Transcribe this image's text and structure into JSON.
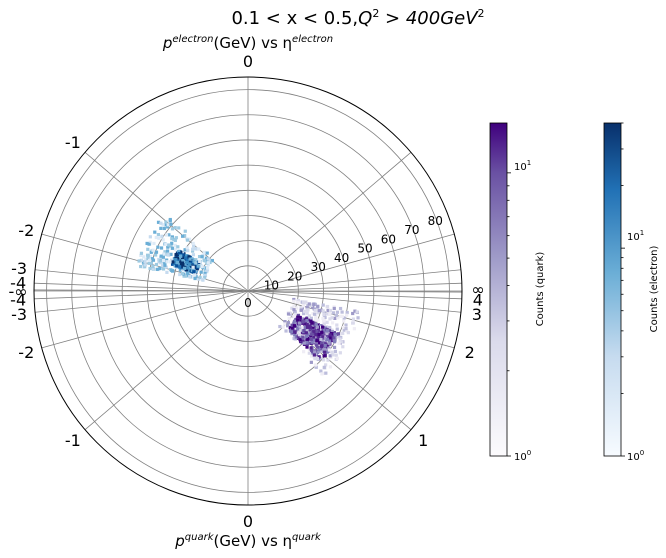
{
  "chart_data": {
    "type": "polar-histogram",
    "title": "0.1 < x < 0.5,$Q^2 > 400GeV^2$",
    "title_parts": {
      "plain": "0.1 < x < 0.5,",
      "q": "Q",
      "sq1": "2",
      "gt": " > 400GeV",
      "sq2": "2"
    },
    "electron_label": {
      "p": "p",
      "sup_p": "electron",
      "mid": "(GeV) vs η",
      "sup_eta": "electron"
    },
    "quark_label": {
      "p": "p",
      "sup_p": "quark",
      "mid": "(GeV) vs η",
      "sup_eta": "quark"
    },
    "radial_axis": {
      "range": [
        0,
        85
      ],
      "ticks": [
        0,
        10,
        20,
        30,
        40,
        50,
        60,
        70,
        80
      ],
      "grid": true
    },
    "eta_ticks": {
      "top_center": "0",
      "bottom_center": "0",
      "left": [
        "-1",
        "-2",
        "-3",
        "-4",
        "-∞",
        "-4",
        "-3",
        "-2",
        "-1"
      ],
      "right": [
        "∞",
        "4",
        "3",
        "2",
        "1"
      ]
    },
    "eta_tick_values": {
      "left": [
        -1,
        -2,
        -3,
        -4,
        null,
        -4,
        -3,
        -2,
        -1
      ],
      "right_electron": [
        null
      ],
      "right_quark": [
        4,
        3,
        2,
        1
      ]
    },
    "electron_hist": {
      "cmap": "Blues",
      "eta_range": [
        -2.2,
        -0.9
      ],
      "p_range": [
        18,
        45
      ],
      "dense_eta": [
        -1.8,
        -1.3
      ],
      "dense_p": [
        22,
        32
      ],
      "counts_range": [
        1,
        40
      ]
    },
    "quark_hist": {
      "cmap": "Purples",
      "eta_range": [
        0.8,
        2.4
      ],
      "p_range": [
        18,
        45
      ],
      "dense_eta": [
        0.9,
        1.5
      ],
      "dense_p": [
        22,
        40
      ],
      "counts_range": [
        1,
        15
      ]
    },
    "colorbar_quark": {
      "label": "Counts (quark)",
      "scale": "log",
      "range": [
        1,
        15
      ],
      "tick_labels": {
        "bottom": "10",
        "bottom_exp": "0",
        "top": "10",
        "top_exp": "1"
      }
    },
    "colorbar_electron": {
      "label": "Counts (electron)",
      "scale": "log",
      "range": [
        1,
        40
      ],
      "tick_labels": {
        "bottom": "10",
        "bottom_exp": "0",
        "top": "10",
        "top_exp": "1"
      }
    },
    "colors": {
      "electron_max": "#08306b",
      "quark_max": "#3f007d",
      "grid": "#808080"
    }
  }
}
